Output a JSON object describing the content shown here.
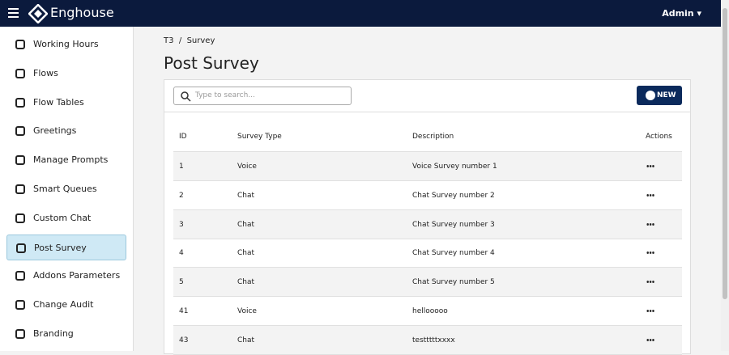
{
  "header": {
    "brand": "Enghouse",
    "user": "Admin"
  },
  "sidebar": {
    "items": [
      "Working Hours",
      "Flows",
      "Flow Tables",
      "Greetings",
      "Manage Prompts",
      "Smart Queues",
      "Custom Chat",
      "Post Survey",
      "Addons Parameters",
      "Change Audit",
      "Branding"
    ],
    "active": 7
  },
  "breadcrumb": {
    "items": [
      "T3",
      "Survey"
    ],
    "separator": "/"
  },
  "page": {
    "title": "Post Survey"
  },
  "search": {
    "placeholder": "Type to search..."
  },
  "new_button": "NEW",
  "table": {
    "headers": [
      "ID",
      "Survey Type",
      "Description",
      "Actions"
    ],
    "rows": [
      [
        "1",
        "Voice",
        "Voice Survey number 1"
      ],
      [
        "2",
        "Chat",
        "Chat Survey number 2"
      ],
      [
        "3",
        "Chat",
        "Chat Survey number 3"
      ],
      [
        "4",
        "Chat",
        "Chat Survey number 4"
      ],
      [
        "5",
        "Chat",
        "Chat Survey number 5"
      ],
      [
        "41",
        "Voice",
        "hellooooo"
      ],
      [
        "43",
        "Chat",
        "testttttxxxx"
      ]
    ]
  }
}
